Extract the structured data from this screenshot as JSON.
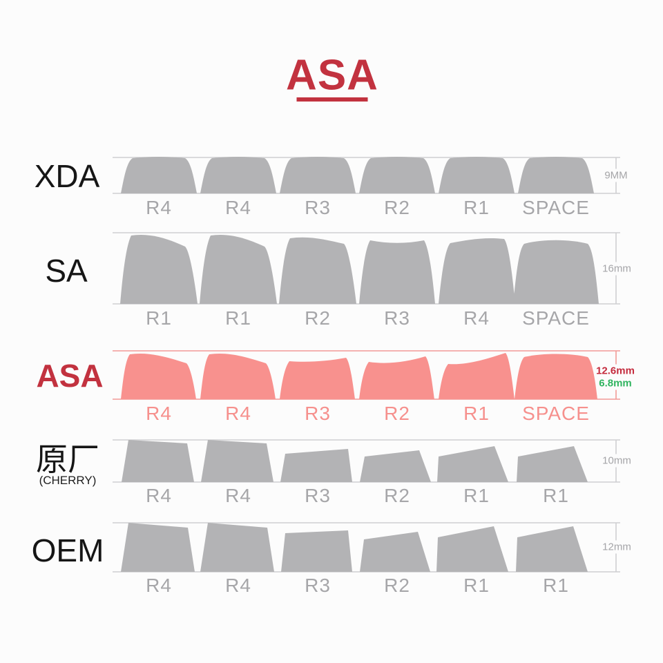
{
  "title": {
    "text": "ASA"
  },
  "colors": {
    "accent_red": "#c2323f",
    "key_gray": "#b3b3b5",
    "key_salmon": "#f8918e",
    "dim_red": "#c42b3d",
    "dim_green": "#2fb45f",
    "line_gray": "#cfcfd1"
  },
  "rows": [
    {
      "id": "xda",
      "name": "XDA",
      "keys": [
        "R4",
        "R4",
        "R3",
        "R2",
        "R1",
        "SPACE"
      ],
      "dims": [
        "9MM"
      ]
    },
    {
      "id": "sa",
      "name": "SA",
      "keys": [
        "R1",
        "R1",
        "R2",
        "R3",
        "R4",
        "SPACE"
      ],
      "dims": [
        "16mm"
      ]
    },
    {
      "id": "asa",
      "name": "ASA",
      "keys": [
        "R4",
        "R4",
        "R3",
        "R2",
        "R1",
        "SPACE"
      ],
      "dims": [
        "12.6mm",
        "6.8mm"
      ]
    },
    {
      "id": "cherry",
      "name": "原厂",
      "subname": "(CHERRY)",
      "keys": [
        "R4",
        "R4",
        "R3",
        "R2",
        "R1",
        "R1"
      ],
      "dims": [
        "10mm"
      ]
    },
    {
      "id": "oem",
      "name": "OEM",
      "keys": [
        "R4",
        "R4",
        "R3",
        "R2",
        "R1",
        "R1"
      ],
      "dims": [
        "12mm"
      ]
    }
  ]
}
